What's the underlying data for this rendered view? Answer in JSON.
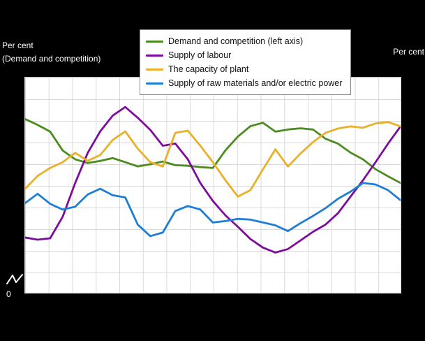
{
  "labels": {
    "left_axis_title_line1": "Per cent",
    "left_axis_title_line2": "(Demand and competition)",
    "right_axis_title": "Per cent",
    "left_axis_zero": "0"
  },
  "chart_data": {
    "type": "line",
    "x": [
      1,
      2,
      3,
      4,
      5,
      6,
      7,
      8,
      9,
      10,
      11,
      12,
      13,
      14,
      15,
      16,
      17,
      18,
      19,
      20,
      21,
      22,
      23,
      24,
      25,
      26,
      27,
      28,
      29,
      30,
      31
    ],
    "title": "",
    "xlabel": "",
    "axis_left": {
      "title": "Per cent (Demand and competition)",
      "range": [
        0,
        70
      ],
      "zero_tick": "0",
      "axis_break": true
    },
    "axis_right": {
      "title": "Per cent",
      "range": [
        0,
        30
      ]
    },
    "grid": true,
    "legend_position": "top",
    "series": [
      {
        "id": "demand",
        "name": "Demand and competition (left axis)",
        "color": "#4c8c1e",
        "axis": "left",
        "values": [
          56.5,
          54.6,
          52.4,
          46.3,
          43.4,
          42.2,
          42.9,
          43.8,
          42.5,
          41.1,
          41.8,
          42.7,
          41.5,
          41.3,
          40.9,
          40.6,
          46.3,
          50.8,
          54.2,
          55.3,
          52.4,
          53.1,
          53.5,
          53.1,
          50.1,
          48.5,
          45.6,
          43.4,
          40.2,
          37.9,
          35.7
        ]
      },
      {
        "id": "labour",
        "name": "Supply of labour",
        "color": "#7b0c9c",
        "axis": "right",
        "values": [
          7.7,
          7.4,
          7.6,
          10.6,
          15.3,
          19.5,
          22.5,
          24.7,
          25.9,
          24.4,
          22.7,
          20.5,
          20.8,
          18.6,
          15.3,
          12.8,
          10.8,
          9.2,
          7.5,
          6.3,
          5.6,
          6.1,
          7.3,
          8.5,
          9.5,
          11.1,
          13.4,
          15.7,
          18.2,
          20.8,
          23.2
        ]
      },
      {
        "id": "capacity",
        "name": "The capacity of plant",
        "color": "#e9b02a",
        "axis": "right",
        "values": [
          14.5,
          16.3,
          17.4,
          18.2,
          19.5,
          18.4,
          19.2,
          21.3,
          22.5,
          20.1,
          18.2,
          17.6,
          22.3,
          22.6,
          20.5,
          18.2,
          15.7,
          13.4,
          14.3,
          17.2,
          20.0,
          17.6,
          19.4,
          21.0,
          22.3,
          22.9,
          23.2,
          23.0,
          23.6,
          23.8,
          23.2
        ]
      },
      {
        "id": "raw-materials",
        "name": "Supply of raw materials and/or electric power",
        "color": "#1e7ed6",
        "axis": "right",
        "values": [
          12.5,
          13.8,
          12.4,
          11.6,
          12.0,
          13.7,
          14.5,
          13.6,
          13.3,
          9.5,
          7.9,
          8.4,
          11.4,
          12.1,
          11.6,
          9.8,
          10.0,
          10.3,
          10.2,
          9.8,
          9.4,
          8.6,
          9.7,
          10.7,
          11.8,
          13.1,
          14.1,
          15.3,
          15.1,
          14.3,
          12.9
        ]
      }
    ]
  }
}
